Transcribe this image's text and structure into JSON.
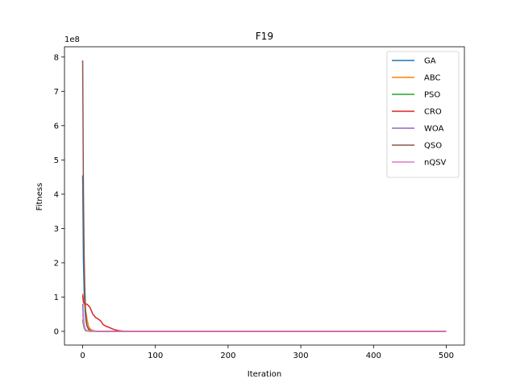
{
  "chart_data": {
    "type": "line",
    "title": "F19",
    "xlabel": "Iteration",
    "ylabel": "Fitness",
    "y_offset_label": "1e8",
    "y_scale": 100000000,
    "xlim": [
      -25,
      525
    ],
    "ylim": [
      -0.4,
      8.3
    ],
    "x_ticks": [
      0,
      100,
      200,
      300,
      400,
      500
    ],
    "y_ticks": [
      0,
      1,
      2,
      3,
      4,
      5,
      6,
      7,
      8
    ],
    "legend_position": "top-right",
    "grid": false,
    "series": [
      {
        "name": "GA",
        "color": "#1f77b4",
        "x": [
          0,
          1,
          2,
          3,
          4,
          5,
          6,
          8,
          10,
          15,
          20,
          50,
          100,
          500
        ],
        "y": [
          4.55,
          2.1,
          1.2,
          0.7,
          0.4,
          0.25,
          0.15,
          0.08,
          0.04,
          0.01,
          0.0,
          0.0,
          0.0,
          0.0
        ]
      },
      {
        "name": "ABC",
        "color": "#ff7f0e",
        "x": [
          0,
          1,
          2,
          3,
          4,
          5,
          6,
          7,
          8,
          10,
          12,
          15,
          20,
          50,
          100,
          500
        ],
        "y": [
          1.1,
          0.9,
          0.8,
          0.7,
          0.6,
          0.5,
          0.35,
          0.25,
          0.15,
          0.08,
          0.04,
          0.02,
          0.0,
          0.0,
          0.0,
          0.0
        ]
      },
      {
        "name": "PSO",
        "color": "#2ca02c",
        "x": [
          0,
          1,
          2,
          3,
          4,
          6,
          10,
          20,
          100,
          500
        ],
        "y": [
          0.35,
          0.2,
          0.1,
          0.05,
          0.02,
          0.01,
          0.0,
          0.0,
          0.0,
          0.0
        ]
      },
      {
        "name": "CRO",
        "color": "#d62728",
        "x": [
          0,
          1,
          2,
          4,
          6,
          8,
          10,
          12,
          14,
          16,
          18,
          20,
          22,
          25,
          28,
          32,
          36,
          40,
          45,
          50,
          55,
          60,
          100,
          500
        ],
        "y": [
          1.05,
          0.85,
          0.82,
          0.8,
          0.79,
          0.75,
          0.7,
          0.6,
          0.5,
          0.45,
          0.4,
          0.38,
          0.35,
          0.3,
          0.2,
          0.15,
          0.12,
          0.08,
          0.04,
          0.02,
          0.01,
          0.0,
          0.0,
          0.0
        ]
      },
      {
        "name": "WOA",
        "color": "#9467bd",
        "x": [
          0,
          1,
          2,
          3,
          4,
          6,
          10,
          20,
          100,
          500
        ],
        "y": [
          0.8,
          0.4,
          0.2,
          0.1,
          0.05,
          0.02,
          0.01,
          0.0,
          0.0,
          0.0
        ]
      },
      {
        "name": "QSO",
        "color": "#8c564b",
        "x": [
          0,
          1,
          2,
          3,
          4,
          5,
          6,
          8,
          10,
          15,
          20,
          100,
          500
        ],
        "y": [
          7.9,
          4.2,
          2.2,
          1.2,
          0.6,
          0.3,
          0.15,
          0.06,
          0.03,
          0.01,
          0.0,
          0.0,
          0.0
        ]
      },
      {
        "name": "nQSV",
        "color": "#e377c2",
        "x": [
          0,
          1,
          2,
          3,
          4,
          6,
          10,
          20,
          100,
          500
        ],
        "y": [
          0.5,
          0.3,
          0.15,
          0.08,
          0.04,
          0.02,
          0.01,
          0.0,
          0.0,
          0.0
        ]
      }
    ]
  }
}
